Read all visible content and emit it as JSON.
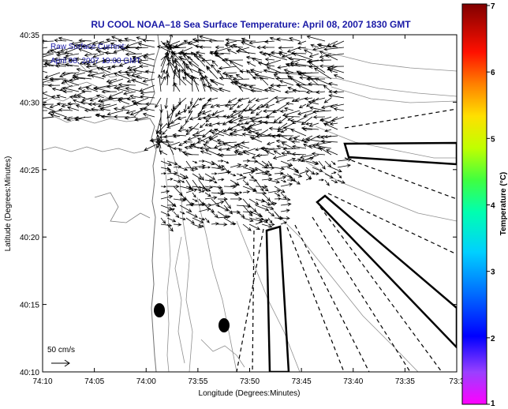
{
  "title": "RU COOL  NOAA–18  Sea Surface Temperature:  April 08, 2007 1830 GMT",
  "legend": {
    "line1": "Raw Surface Current:",
    "line2": "April 08, 2007 19:00 GMT"
  },
  "scale_label": "50 cm/s",
  "axes": {
    "xlabel": "Longitude (Degrees:Minutes)",
    "ylabel": "Latitude (Degrees:Minutes)",
    "xticks": [
      "74:10",
      "74:05",
      "74:00",
      "73:55",
      "73:50",
      "73:45",
      "73:40",
      "73:35",
      "73:3"
    ],
    "yticks": [
      "40:35",
      "40:30",
      "40:25",
      "40:20",
      "40:15",
      "40:10"
    ]
  },
  "colorbar": {
    "label": "Temperature (°C)",
    "ticks": [
      "7",
      "6",
      "5",
      "4",
      "3",
      "2",
      "1"
    ],
    "range": [
      1,
      7
    ],
    "colors": [
      "#ff00ff",
      "#7a00ff",
      "#0000ff",
      "#0060ff",
      "#00c8ff",
      "#00ffd0",
      "#00ff60",
      "#60ff00",
      "#d0ff00",
      "#ffd000",
      "#ff7000",
      "#ff1000",
      "#c00000",
      "#800000"
    ]
  }
}
